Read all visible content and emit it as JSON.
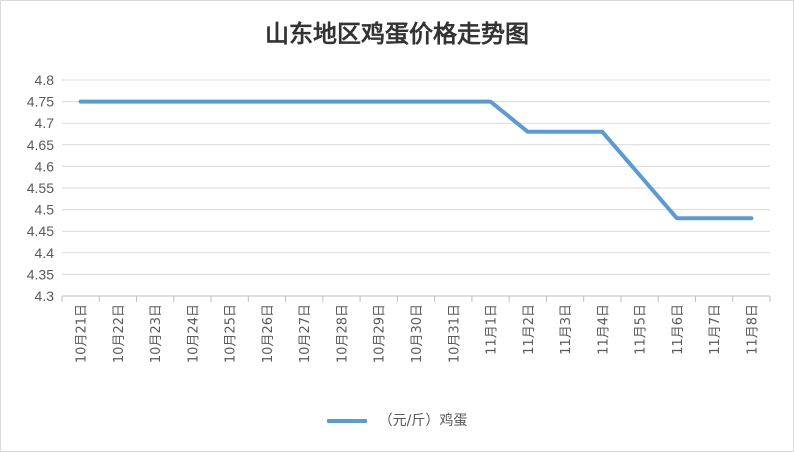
{
  "chart_data": {
    "type": "line",
    "title": "山东地区鸡蛋价格走势图",
    "categories": [
      "10月21日",
      "10月22日",
      "10月23日",
      "10月24日",
      "10月25日",
      "10月26日",
      "10月27日",
      "10月28日",
      "10月29日",
      "10月30日",
      "10月31日",
      "11月1日",
      "11月2日",
      "11月3日",
      "11月4日",
      "11月5日",
      "11月6日",
      "11月7日",
      "11月8日"
    ],
    "series": [
      {
        "name": "（元/斤）鸡蛋",
        "values": [
          4.75,
          4.75,
          4.75,
          4.75,
          4.75,
          4.75,
          4.75,
          4.75,
          4.75,
          4.75,
          4.75,
          4.75,
          4.68,
          4.68,
          4.68,
          4.58,
          4.48,
          4.48,
          4.48
        ],
        "color": "#5b9bd5"
      }
    ],
    "yticks": [
      "4.8",
      "4.75",
      "4.7",
      "4.65",
      "4.6",
      "4.55",
      "4.5",
      "4.45",
      "4.4",
      "4.35",
      "4.3"
    ],
    "ylim": [
      4.3,
      4.8
    ],
    "grid": true,
    "legend": "bottom"
  }
}
